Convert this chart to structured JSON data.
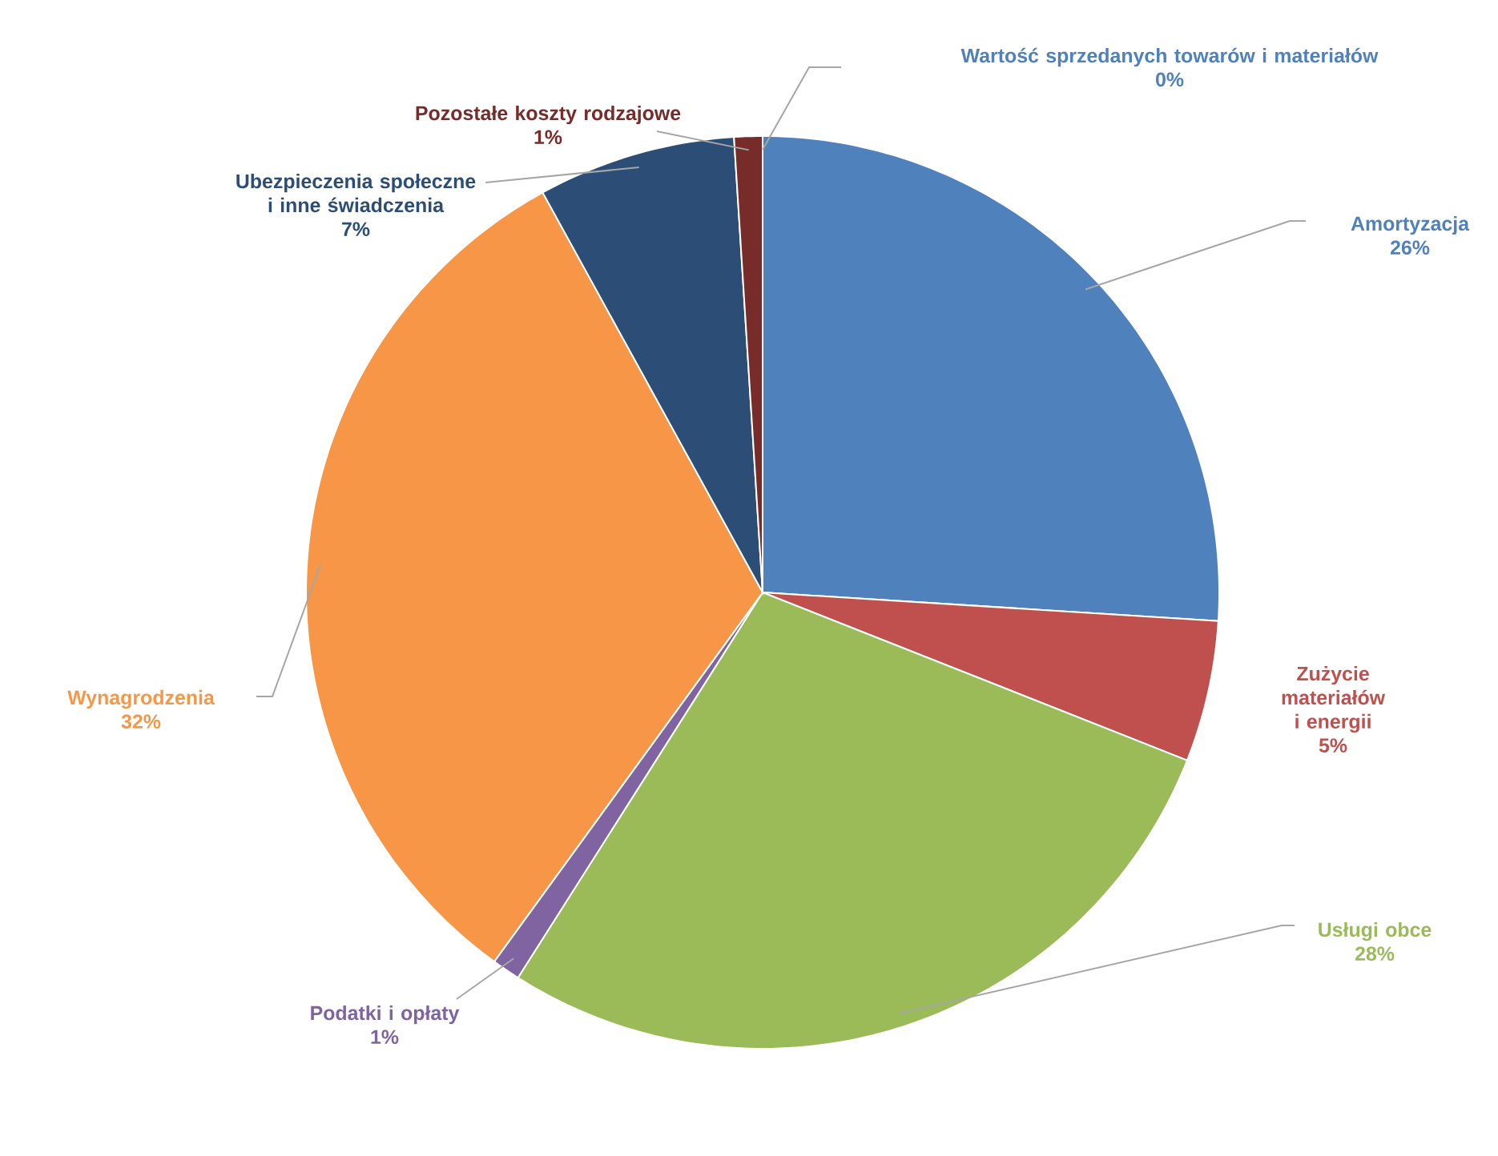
{
  "chart_data": {
    "type": "pie",
    "data_labels": true,
    "categories": [
      "Amortyzacja",
      "Zużycie materiałów i energii",
      "Usługi obce",
      "Podatki i opłaty",
      "Wynagrodzenia",
      "Ubezpieczenia społeczne i inne świadczenia",
      "Pozostałe koszty rodzajowe",
      "Wartość sprzedanych towarów i materiałów"
    ],
    "values": [
      26,
      5,
      28,
      1,
      32,
      7,
      1,
      0
    ],
    "value_labels": [
      "26%",
      "5%",
      "28%",
      "1%",
      "32%",
      "7%",
      "1%",
      "0%"
    ],
    "colors": [
      "#4f81bd",
      "#c0504d",
      "#9bbb59",
      "#8064a2",
      "#f79646",
      "#2c4d75",
      "#772c2a",
      "#4f81bd"
    ]
  }
}
